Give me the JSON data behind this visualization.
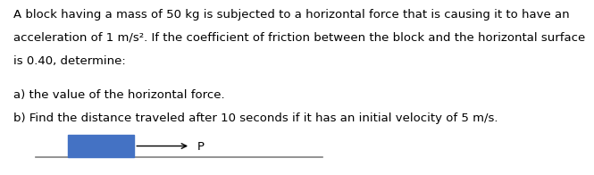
{
  "background_color": "#ffffff",
  "text_line1": "A block having a mass of 50 kg is subjected to a horizontal force that is causing it to have an",
  "text_line2": "acceleration of 1 m/s². If the coefficient of friction between the block and the horizontal surface",
  "text_line3": "is 0.40, determine:",
  "text_line4": "a) the value of the horizontal force.",
  "text_line5": "b) Find the distance traveled after 10 seconds if it has an initial velocity of 5 m/s.",
  "block_color": "#4472C4",
  "ground_color": "#808080",
  "arrow_color": "#000000",
  "font_size": 9.5,
  "font_family": "DejaVu Sans"
}
